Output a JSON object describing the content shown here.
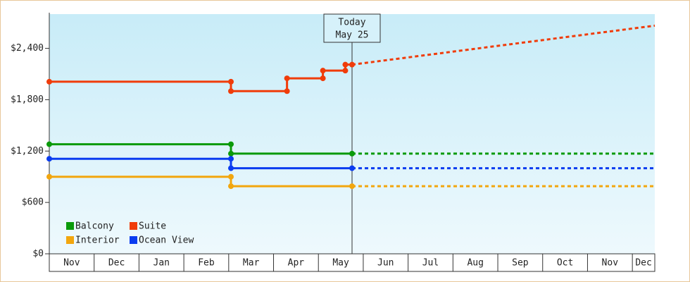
{
  "chart_data": {
    "type": "step-line",
    "ylim": [
      0,
      2800
    ],
    "yticks": [
      {
        "value": 0,
        "label": "$0"
      },
      {
        "value": 600,
        "label": "$600"
      },
      {
        "value": 1200,
        "label": "$1,200"
      },
      {
        "value": 1800,
        "label": "$1,800"
      },
      {
        "value": 2400,
        "label": "$2,400"
      }
    ],
    "xlim": [
      0,
      13.5
    ],
    "xticks": [
      {
        "value": 0,
        "label": "Nov"
      },
      {
        "value": 1,
        "label": "Dec"
      },
      {
        "value": 2,
        "label": "Jan"
      },
      {
        "value": 3,
        "label": "Feb"
      },
      {
        "value": 4,
        "label": "Mar"
      },
      {
        "value": 5,
        "label": "Apr"
      },
      {
        "value": 6,
        "label": "May"
      },
      {
        "value": 7,
        "label": "Jun"
      },
      {
        "value": 8,
        "label": "Jul"
      },
      {
        "value": 9,
        "label": "Aug"
      },
      {
        "value": 10,
        "label": "Sep"
      },
      {
        "value": 11,
        "label": "Oct"
      },
      {
        "value": 12,
        "label": "Nov"
      },
      {
        "value": 13,
        "label": "Dec"
      }
    ],
    "today": {
      "x": 6.75,
      "label": [
        "Today",
        "May 25"
      ]
    },
    "legend": "bottom-left",
    "series": [
      {
        "name": "Balcony",
        "color": "#0a9a0a",
        "x": [
          0,
          4.05,
          4.05,
          6.75
        ],
        "values": [
          1280,
          1280,
          1170,
          1170
        ],
        "forecast": {
          "x": [
            6.75,
            13.5
          ],
          "values": [
            1170,
            1170
          ]
        }
      },
      {
        "name": "Suite",
        "color": "#f03c0a",
        "x": [
          0,
          4.05,
          4.05,
          5.3,
          5.3,
          6.1,
          6.1,
          6.6,
          6.6,
          6.75
        ],
        "values": [
          2010,
          2010,
          1900,
          1900,
          2050,
          2050,
          2140,
          2140,
          2210,
          2210
        ],
        "forecast": {
          "x": [
            6.75,
            13.5
          ],
          "values": [
            2210,
            2665
          ]
        }
      },
      {
        "name": "Interior",
        "color": "#f2a60e",
        "x": [
          0,
          4.05,
          4.05,
          6.75
        ],
        "values": [
          900,
          900,
          790,
          790
        ],
        "forecast": {
          "x": [
            6.75,
            13.5
          ],
          "values": [
            790,
            790
          ]
        }
      },
      {
        "name": "Ocean View",
        "color": "#0a3cf0",
        "x": [
          0,
          4.05,
          4.05,
          6.75
        ],
        "values": [
          1110,
          1110,
          1000,
          1000
        ],
        "forecast": {
          "x": [
            6.75,
            13.5
          ],
          "values": [
            1000,
            1000
          ]
        }
      }
    ]
  }
}
